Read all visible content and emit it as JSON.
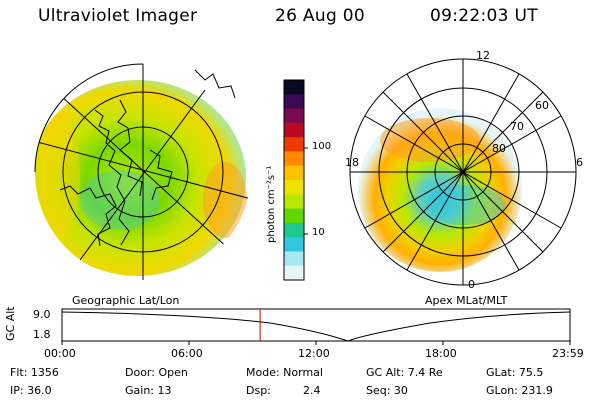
{
  "header": {
    "instrument": "Ultraviolet Imager",
    "date": "26 Aug 00",
    "time": "09:22:03 UT"
  },
  "colorbar": {
    "unit_label": "photon cm⁻²s⁻¹",
    "ticks": [
      "100",
      "10"
    ],
    "colors": [
      "#0a0a22",
      "#3a0a55",
      "#7a0a50",
      "#bb0a20",
      "#ee3a00",
      "#ff8a00",
      "#ffc000",
      "#f0e000",
      "#b8e800",
      "#60d800",
      "#20c890",
      "#30c8e0",
      "#a8e8f0",
      "#e6f6f8"
    ]
  },
  "geo_panel": {
    "caption": "Geographic Lat/Lon"
  },
  "polar_panel": {
    "caption": "Apex MLat/MLT",
    "mlt_labels": [
      "12",
      "18",
      "6",
      "0"
    ],
    "lat_labels": [
      "60",
      "70",
      "80"
    ]
  },
  "timeline": {
    "axis_label": "GC Alt",
    "y_ticks": [
      "9.0",
      "1.8"
    ],
    "x_ticks": [
      "00:00",
      "06:00",
      "12:00",
      "18:00",
      "23:59"
    ],
    "marker_fraction": 0.39
  },
  "info": {
    "flt": "Flt: 1356",
    "ip": "IP: 36.0",
    "door": "Door: Open",
    "gain": "Gain: 13",
    "mode": "Mode: Normal",
    "dsp_label": "Dsp:",
    "dsp_value": "2.4",
    "gc_alt": "GC Alt: 7.4 Re",
    "seq": "Seq: 30",
    "glat": "GLat: 75.5",
    "glon": "GLon: 231.9"
  }
}
